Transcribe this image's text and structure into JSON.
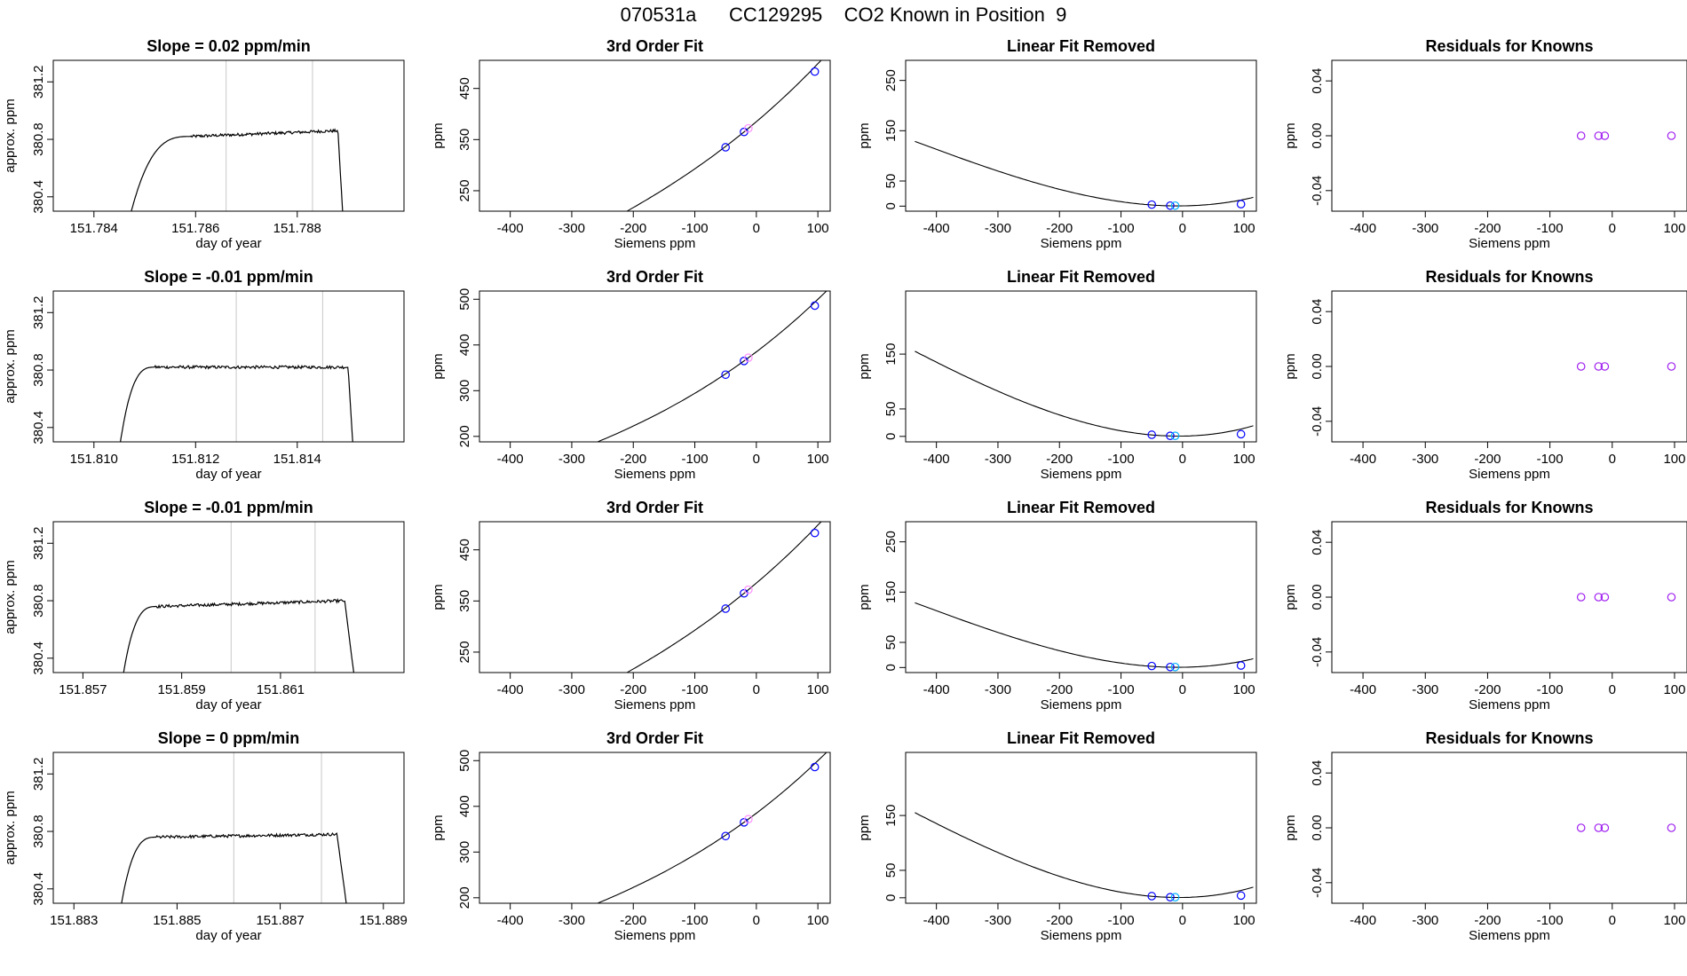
{
  "figure_title": "070531a      CC129295    CO2 Known in Position  9",
  "chart_data": [
    {
      "row": 0,
      "col": 0,
      "type": "line",
      "title": "Slope =  0.02  ppm/min",
      "xlabel": "day of year",
      "ylabel": "approx. ppm",
      "xlim": [
        151.7832,
        151.7901
      ],
      "ylim": [
        380.3,
        381.35
      ],
      "xticks": [
        151.784,
        151.786,
        151.788
      ],
      "xtick_labels": [
        "151.784",
        "151.786",
        "151.788"
      ],
      "yticks": [
        380.4,
        380.8,
        381.2
      ],
      "ytick_labels": [
        "380.4",
        "380.8",
        "381.2"
      ],
      "vlines": [
        151.7866,
        151.7883
      ],
      "trace": {
        "x_start": 151.7847,
        "x_ramp": 151.7859,
        "x_end": 151.7888,
        "x_drop": 151.7889,
        "level_start": 380.82,
        "level_end": 380.86,
        "baseline": 380.25,
        "noise": 0.01
      }
    },
    {
      "row": 0,
      "col": 1,
      "type": "line",
      "title": "3rd Order Fit",
      "xlabel": "Siemens ppm",
      "ylabel": "ppm",
      "xlim": [
        -450,
        120
      ],
      "ylim": [
        210,
        505
      ],
      "xticks": [
        -400,
        -300,
        -200,
        -100,
        0,
        100
      ],
      "xtick_labels": [
        "-400",
        "-300",
        "-200",
        "-100",
        "0",
        "100"
      ],
      "yticks": [
        250,
        350,
        450
      ],
      "ytick_labels": [
        "250",
        "350",
        "450"
      ],
      "curve": {
        "poly": [
          385,
          1.02,
          0.00106,
          8e-07
        ],
        "x_range": [
          -435,
          115
        ]
      },
      "points": [
        {
          "x": -50,
          "y": 335,
          "color": "#0000ff"
        },
        {
          "x": -20,
          "y": 365,
          "color": "#0000ff"
        },
        {
          "x": -13,
          "y": 372,
          "color": "#ff8cff"
        },
        {
          "x": 95,
          "y": 483,
          "color": "#0000ff"
        }
      ]
    },
    {
      "row": 0,
      "col": 2,
      "type": "line",
      "title": "Linear Fit Removed",
      "xlabel": "Siemens ppm",
      "ylabel": "ppm",
      "xlim": [
        -450,
        120
      ],
      "ylim": [
        -10,
        290
      ],
      "xticks": [
        -400,
        -300,
        -200,
        -100,
        0,
        100
      ],
      "xtick_labels": [
        "-400",
        "-300",
        "-200",
        "-100",
        "0",
        "100"
      ],
      "yticks": [
        0,
        50,
        150,
        250
      ],
      "ytick_labels": [
        "0",
        "50",
        "150",
        "250"
      ],
      "curve": {
        "poly": [
          0.5,
          0.015,
          0.00106,
          8e-07
        ],
        "x_range": [
          -435,
          115
        ]
      },
      "points": [
        {
          "x": -50,
          "y": 3,
          "color": "#0000ff"
        },
        {
          "x": -20,
          "y": 1,
          "color": "#0000ff"
        },
        {
          "x": -12,
          "y": 1,
          "color": "#00b0ff"
        },
        {
          "x": 95,
          "y": 4,
          "color": "#0000ff"
        }
      ]
    },
    {
      "row": 0,
      "col": 3,
      "type": "scatter",
      "title": "Residuals for Knowns",
      "xlabel": "Siemens ppm",
      "ylabel": "ppm",
      "xlim": [
        -450,
        120
      ],
      "ylim": [
        -0.055,
        0.055
      ],
      "xticks": [
        -400,
        -300,
        -200,
        -100,
        0,
        100
      ],
      "xtick_labels": [
        "-400",
        "-300",
        "-200",
        "-100",
        "0",
        "100"
      ],
      "yticks": [
        -0.04,
        0.0,
        0.04
      ],
      "ytick_labels": [
        "-0.04",
        "0.00",
        "0.04"
      ],
      "points": [
        {
          "x": -50,
          "y": 0,
          "color": "#a020f0"
        },
        {
          "x": -22,
          "y": 0,
          "color": "#a020f0"
        },
        {
          "x": -12,
          "y": 0,
          "color": "#a020f0"
        },
        {
          "x": 95,
          "y": 0,
          "color": "#a020f0"
        }
      ]
    },
    {
      "row": 1,
      "col": 0,
      "type": "line",
      "title": "Slope =  -0.01  ppm/min",
      "xlabel": "day of year",
      "ylabel": "approx. ppm",
      "xlim": [
        151.8092,
        151.8161
      ],
      "ylim": [
        380.3,
        381.35
      ],
      "xticks": [
        151.81,
        151.812,
        151.814
      ],
      "xtick_labels": [
        "151.810",
        "151.812",
        "151.814"
      ],
      "yticks": [
        380.4,
        380.8,
        381.2
      ],
      "ytick_labels": [
        "380.4",
        "380.8",
        "381.2"
      ],
      "vlines": [
        151.8128,
        151.8145
      ],
      "trace": {
        "x_start": 151.8105,
        "x_ramp": 151.8112,
        "x_end": 151.815,
        "x_drop": 151.8151,
        "level_start": 380.82,
        "level_end": 380.82,
        "baseline": 380.25,
        "noise": 0.01
      }
    },
    {
      "row": 1,
      "col": 1,
      "type": "line",
      "title": "3rd Order Fit",
      "xlabel": "Siemens ppm",
      "ylabel": "ppm",
      "xlim": [
        -450,
        120
      ],
      "ylim": [
        188,
        518
      ],
      "xticks": [
        -400,
        -300,
        -200,
        -100,
        0,
        100
      ],
      "xtick_labels": [
        "-400",
        "-300",
        "-200",
        "-100",
        "0",
        "100"
      ],
      "yticks": [
        200,
        300,
        400,
        500
      ],
      "ytick_labels": [
        "200",
        "300",
        "400",
        "500"
      ],
      "curve": {
        "poly": [
          385,
          1.02,
          0.0012,
          8e-07
        ],
        "x_range": [
          -435,
          115
        ]
      },
      "points": [
        {
          "x": -50,
          "y": 335,
          "color": "#0000ff"
        },
        {
          "x": -20,
          "y": 365,
          "color": "#0000ff"
        },
        {
          "x": -13,
          "y": 372,
          "color": "#ff8cff"
        },
        {
          "x": 95,
          "y": 486,
          "color": "#0000ff"
        }
      ]
    },
    {
      "row": 1,
      "col": 2,
      "type": "line",
      "title": "Linear Fit Removed",
      "xlabel": "Siemens ppm",
      "ylabel": "ppm",
      "xlim": [
        -450,
        120
      ],
      "ylim": [
        -10,
        265
      ],
      "xticks": [
        -400,
        -300,
        -200,
        -100,
        0,
        100
      ],
      "xtick_labels": [
        "-400",
        "-300",
        "-200",
        "-100",
        "0",
        "100"
      ],
      "yticks": [
        0,
        50,
        150
      ],
      "ytick_labels": [
        "0",
        "50",
        "150"
      ],
      "curve": {
        "poly": [
          0.5,
          0.015,
          0.0012,
          8e-07
        ],
        "x_range": [
          -435,
          115
        ]
      },
      "points": [
        {
          "x": -50,
          "y": 3,
          "color": "#0000ff"
        },
        {
          "x": -20,
          "y": 1,
          "color": "#0000ff"
        },
        {
          "x": -12,
          "y": 1,
          "color": "#00b0ff"
        },
        {
          "x": 95,
          "y": 4,
          "color": "#0000ff"
        }
      ]
    },
    {
      "row": 1,
      "col": 3,
      "type": "scatter",
      "title": "Residuals for Knowns",
      "xlabel": "Siemens ppm",
      "ylabel": "ppm",
      "xlim": [
        -450,
        120
      ],
      "ylim": [
        -0.055,
        0.055
      ],
      "xticks": [
        -400,
        -300,
        -200,
        -100,
        0,
        100
      ],
      "xtick_labels": [
        "-400",
        "-300",
        "-200",
        "-100",
        "0",
        "100"
      ],
      "yticks": [
        -0.04,
        0.0,
        0.04
      ],
      "ytick_labels": [
        "-0.04",
        "0.00",
        "0.04"
      ],
      "points": [
        {
          "x": -50,
          "y": 0,
          "color": "#a020f0"
        },
        {
          "x": -22,
          "y": 0,
          "color": "#a020f0"
        },
        {
          "x": -12,
          "y": 0,
          "color": "#a020f0"
        },
        {
          "x": 95,
          "y": 0,
          "color": "#a020f0"
        }
      ]
    },
    {
      "row": 2,
      "col": 0,
      "type": "line",
      "title": "Slope =  -0.01  ppm/min",
      "xlabel": "day of year",
      "ylabel": "approx. ppm",
      "xlim": [
        151.8564,
        151.8635
      ],
      "ylim": [
        380.3,
        381.35
      ],
      "xticks": [
        151.857,
        151.859,
        151.861
      ],
      "xtick_labels": [
        "151.857",
        "151.859",
        "151.861"
      ],
      "yticks": [
        380.4,
        380.8,
        381.2
      ],
      "ytick_labels": [
        "380.4",
        "380.8",
        "381.2"
      ],
      "vlines": [
        151.86,
        151.8617
      ],
      "trace": {
        "x_start": 151.8578,
        "x_ramp": 151.8585,
        "x_end": 151.8623,
        "x_drop": 151.8625,
        "level_start": 380.76,
        "level_end": 380.8,
        "baseline": 380.25,
        "noise": 0.01
      }
    },
    {
      "row": 2,
      "col": 1,
      "type": "line",
      "title": "3rd Order Fit",
      "xlabel": "Siemens ppm",
      "ylabel": "ppm",
      "xlim": [
        -450,
        120
      ],
      "ylim": [
        210,
        505
      ],
      "xticks": [
        -400,
        -300,
        -200,
        -100,
        0,
        100
      ],
      "xtick_labels": [
        "-400",
        "-300",
        "-200",
        "-100",
        "0",
        "100"
      ],
      "yticks": [
        250,
        350,
        450
      ],
      "ytick_labels": [
        "250",
        "350",
        "450"
      ],
      "curve": {
        "poly": [
          385,
          1.02,
          0.00106,
          8e-07
        ],
        "x_range": [
          -435,
          115
        ]
      },
      "points": [
        {
          "x": -50,
          "y": 335,
          "color": "#0000ff"
        },
        {
          "x": -20,
          "y": 365,
          "color": "#0000ff"
        },
        {
          "x": -13,
          "y": 372,
          "color": "#ff8cff"
        },
        {
          "x": 95,
          "y": 483,
          "color": "#0000ff"
        }
      ]
    },
    {
      "row": 2,
      "col": 2,
      "type": "line",
      "title": "Linear Fit Removed",
      "xlabel": "Siemens ppm",
      "ylabel": "ppm",
      "xlim": [
        -450,
        120
      ],
      "ylim": [
        -10,
        290
      ],
      "xticks": [
        -400,
        -300,
        -200,
        -100,
        0,
        100
      ],
      "xtick_labels": [
        "-400",
        "-300",
        "-200",
        "-100",
        "0",
        "100"
      ],
      "yticks": [
        0,
        50,
        150,
        250
      ],
      "ytick_labels": [
        "0",
        "50",
        "150",
        "250"
      ],
      "curve": {
        "poly": [
          0.5,
          0.015,
          0.00106,
          8e-07
        ],
        "x_range": [
          -435,
          115
        ]
      },
      "points": [
        {
          "x": -50,
          "y": 3,
          "color": "#0000ff"
        },
        {
          "x": -20,
          "y": 1,
          "color": "#0000ff"
        },
        {
          "x": -12,
          "y": 1,
          "color": "#00b0ff"
        },
        {
          "x": 95,
          "y": 4,
          "color": "#0000ff"
        }
      ]
    },
    {
      "row": 2,
      "col": 3,
      "type": "scatter",
      "title": "Residuals for Knowns",
      "xlabel": "Siemens ppm",
      "ylabel": "ppm",
      "xlim": [
        -450,
        120
      ],
      "ylim": [
        -0.055,
        0.055
      ],
      "xticks": [
        -400,
        -300,
        -200,
        -100,
        0,
        100
      ],
      "xtick_labels": [
        "-400",
        "-300",
        "-200",
        "-100",
        "0",
        "100"
      ],
      "yticks": [
        -0.04,
        0.0,
        0.04
      ],
      "ytick_labels": [
        "-0.04",
        "0.00",
        "0.04"
      ],
      "points": [
        {
          "x": -50,
          "y": 0,
          "color": "#a020f0"
        },
        {
          "x": -22,
          "y": 0,
          "color": "#a020f0"
        },
        {
          "x": -12,
          "y": 0,
          "color": "#a020f0"
        },
        {
          "x": 95,
          "y": 0,
          "color": "#a020f0"
        }
      ]
    },
    {
      "row": 3,
      "col": 0,
      "type": "line",
      "title": "Slope =  0  ppm/min",
      "xlabel": "day of year",
      "ylabel": "approx. ppm",
      "xlim": [
        151.8826,
        151.8894
      ],
      "ylim": [
        380.3,
        381.35
      ],
      "xticks": [
        151.883,
        151.885,
        151.887,
        151.889
      ],
      "xtick_labels": [
        "151.883",
        "151.885",
        "151.887",
        "151.889"
      ],
      "yticks": [
        380.4,
        380.8,
        381.2
      ],
      "ytick_labels": [
        "380.4",
        "380.8",
        "381.2"
      ],
      "vlines": [
        151.8861,
        151.8878
      ],
      "trace": {
        "x_start": 151.8839,
        "x_ramp": 151.8846,
        "x_end": 151.8881,
        "x_drop": 151.8883,
        "level_start": 380.76,
        "level_end": 380.78,
        "baseline": 380.25,
        "noise": 0.01
      }
    },
    {
      "row": 3,
      "col": 1,
      "type": "line",
      "title": "3rd Order Fit",
      "xlabel": "Siemens ppm",
      "ylabel": "ppm",
      "xlim": [
        -450,
        120
      ],
      "ylim": [
        188,
        518
      ],
      "xticks": [
        -400,
        -300,
        -200,
        -100,
        0,
        100
      ],
      "xtick_labels": [
        "-400",
        "-300",
        "-200",
        "-100",
        "0",
        "100"
      ],
      "yticks": [
        200,
        300,
        400,
        500
      ],
      "ytick_labels": [
        "200",
        "300",
        "400",
        "500"
      ],
      "curve": {
        "poly": [
          385,
          1.02,
          0.0012,
          8e-07
        ],
        "x_range": [
          -435,
          115
        ]
      },
      "points": [
        {
          "x": -50,
          "y": 335,
          "color": "#0000ff"
        },
        {
          "x": -20,
          "y": 365,
          "color": "#0000ff"
        },
        {
          "x": -13,
          "y": 372,
          "color": "#ff8cff"
        },
        {
          "x": 95,
          "y": 486,
          "color": "#0000ff"
        }
      ]
    },
    {
      "row": 3,
      "col": 2,
      "type": "line",
      "title": "Linear Fit Removed",
      "xlabel": "Siemens ppm",
      "ylabel": "ppm",
      "xlim": [
        -450,
        120
      ],
      "ylim": [
        -10,
        265
      ],
      "xticks": [
        -400,
        -300,
        -200,
        -100,
        0,
        100
      ],
      "xtick_labels": [
        "-400",
        "-300",
        "-200",
        "-100",
        "0",
        "100"
      ],
      "yticks": [
        0,
        50,
        150
      ],
      "ytick_labels": [
        "0",
        "50",
        "150"
      ],
      "curve": {
        "poly": [
          0.5,
          0.015,
          0.0012,
          8e-07
        ],
        "x_range": [
          -435,
          115
        ]
      },
      "points": [
        {
          "x": -50,
          "y": 3,
          "color": "#0000ff"
        },
        {
          "x": -20,
          "y": 1,
          "color": "#0000ff"
        },
        {
          "x": -12,
          "y": 1,
          "color": "#00b0ff"
        },
        {
          "x": 95,
          "y": 4,
          "color": "#0000ff"
        }
      ]
    },
    {
      "row": 3,
      "col": 3,
      "type": "scatter",
      "title": "Residuals for Knowns",
      "xlabel": "Siemens ppm",
      "ylabel": "ppm",
      "xlim": [
        -450,
        120
      ],
      "ylim": [
        -0.055,
        0.055
      ],
      "xticks": [
        -400,
        -300,
        -200,
        -100,
        0,
        100
      ],
      "xtick_labels": [
        "-400",
        "-300",
        "-200",
        "-100",
        "0",
        "100"
      ],
      "yticks": [
        -0.04,
        0.0,
        0.04
      ],
      "ytick_labels": [
        "-0.04",
        "0.00",
        "0.04"
      ],
      "points": [
        {
          "x": -50,
          "y": 0,
          "color": "#a020f0"
        },
        {
          "x": -22,
          "y": 0,
          "color": "#a020f0"
        },
        {
          "x": -12,
          "y": 0,
          "color": "#a020f0"
        },
        {
          "x": 95,
          "y": 0,
          "color": "#a020f0"
        }
      ]
    }
  ]
}
